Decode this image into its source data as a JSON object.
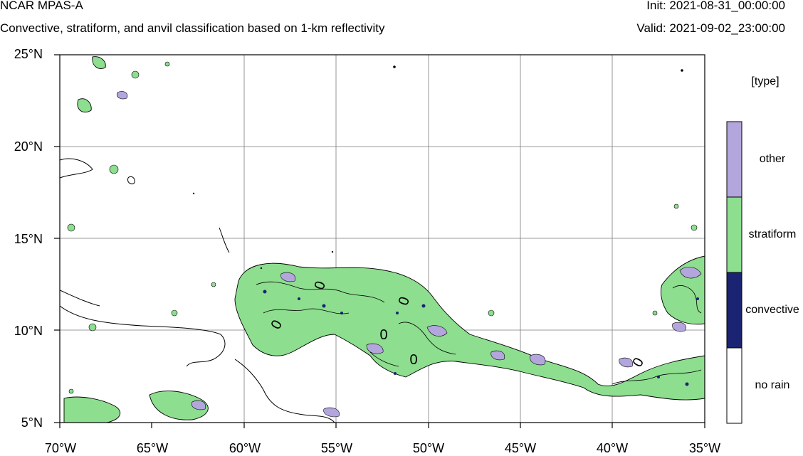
{
  "header": {
    "title": "NCAR MPAS-A",
    "subtitle": "Convective, stratiform, and anvil classification based on 1-km reflectivity",
    "init": "Init: 2021-08-31_00:00:00",
    "valid": "Valid: 2021-09-02_23:00:00"
  },
  "axes": {
    "lat_ticks": [
      "25°N",
      "20°N",
      "15°N",
      "10°N",
      "5°N"
    ],
    "lon_ticks": [
      "70°W",
      "65°W",
      "60°W",
      "55°W",
      "50°W",
      "45°W",
      "40°W",
      "35°W"
    ],
    "lon_range": [
      -70,
      -35
    ],
    "lat_range": [
      5,
      25
    ],
    "grid": true
  },
  "contour_labels": [
    "0",
    "0",
    "0",
    "0",
    "0",
    "0"
  ],
  "legend": {
    "title": "[type]",
    "items": [
      {
        "label": "other",
        "color": "#b3a6dd"
      },
      {
        "label": "stratiform",
        "color": "#8dde8f"
      },
      {
        "label": "convective",
        "color": "#1a2472"
      },
      {
        "label": "no rain",
        "color": "#ffffff"
      }
    ]
  }
}
